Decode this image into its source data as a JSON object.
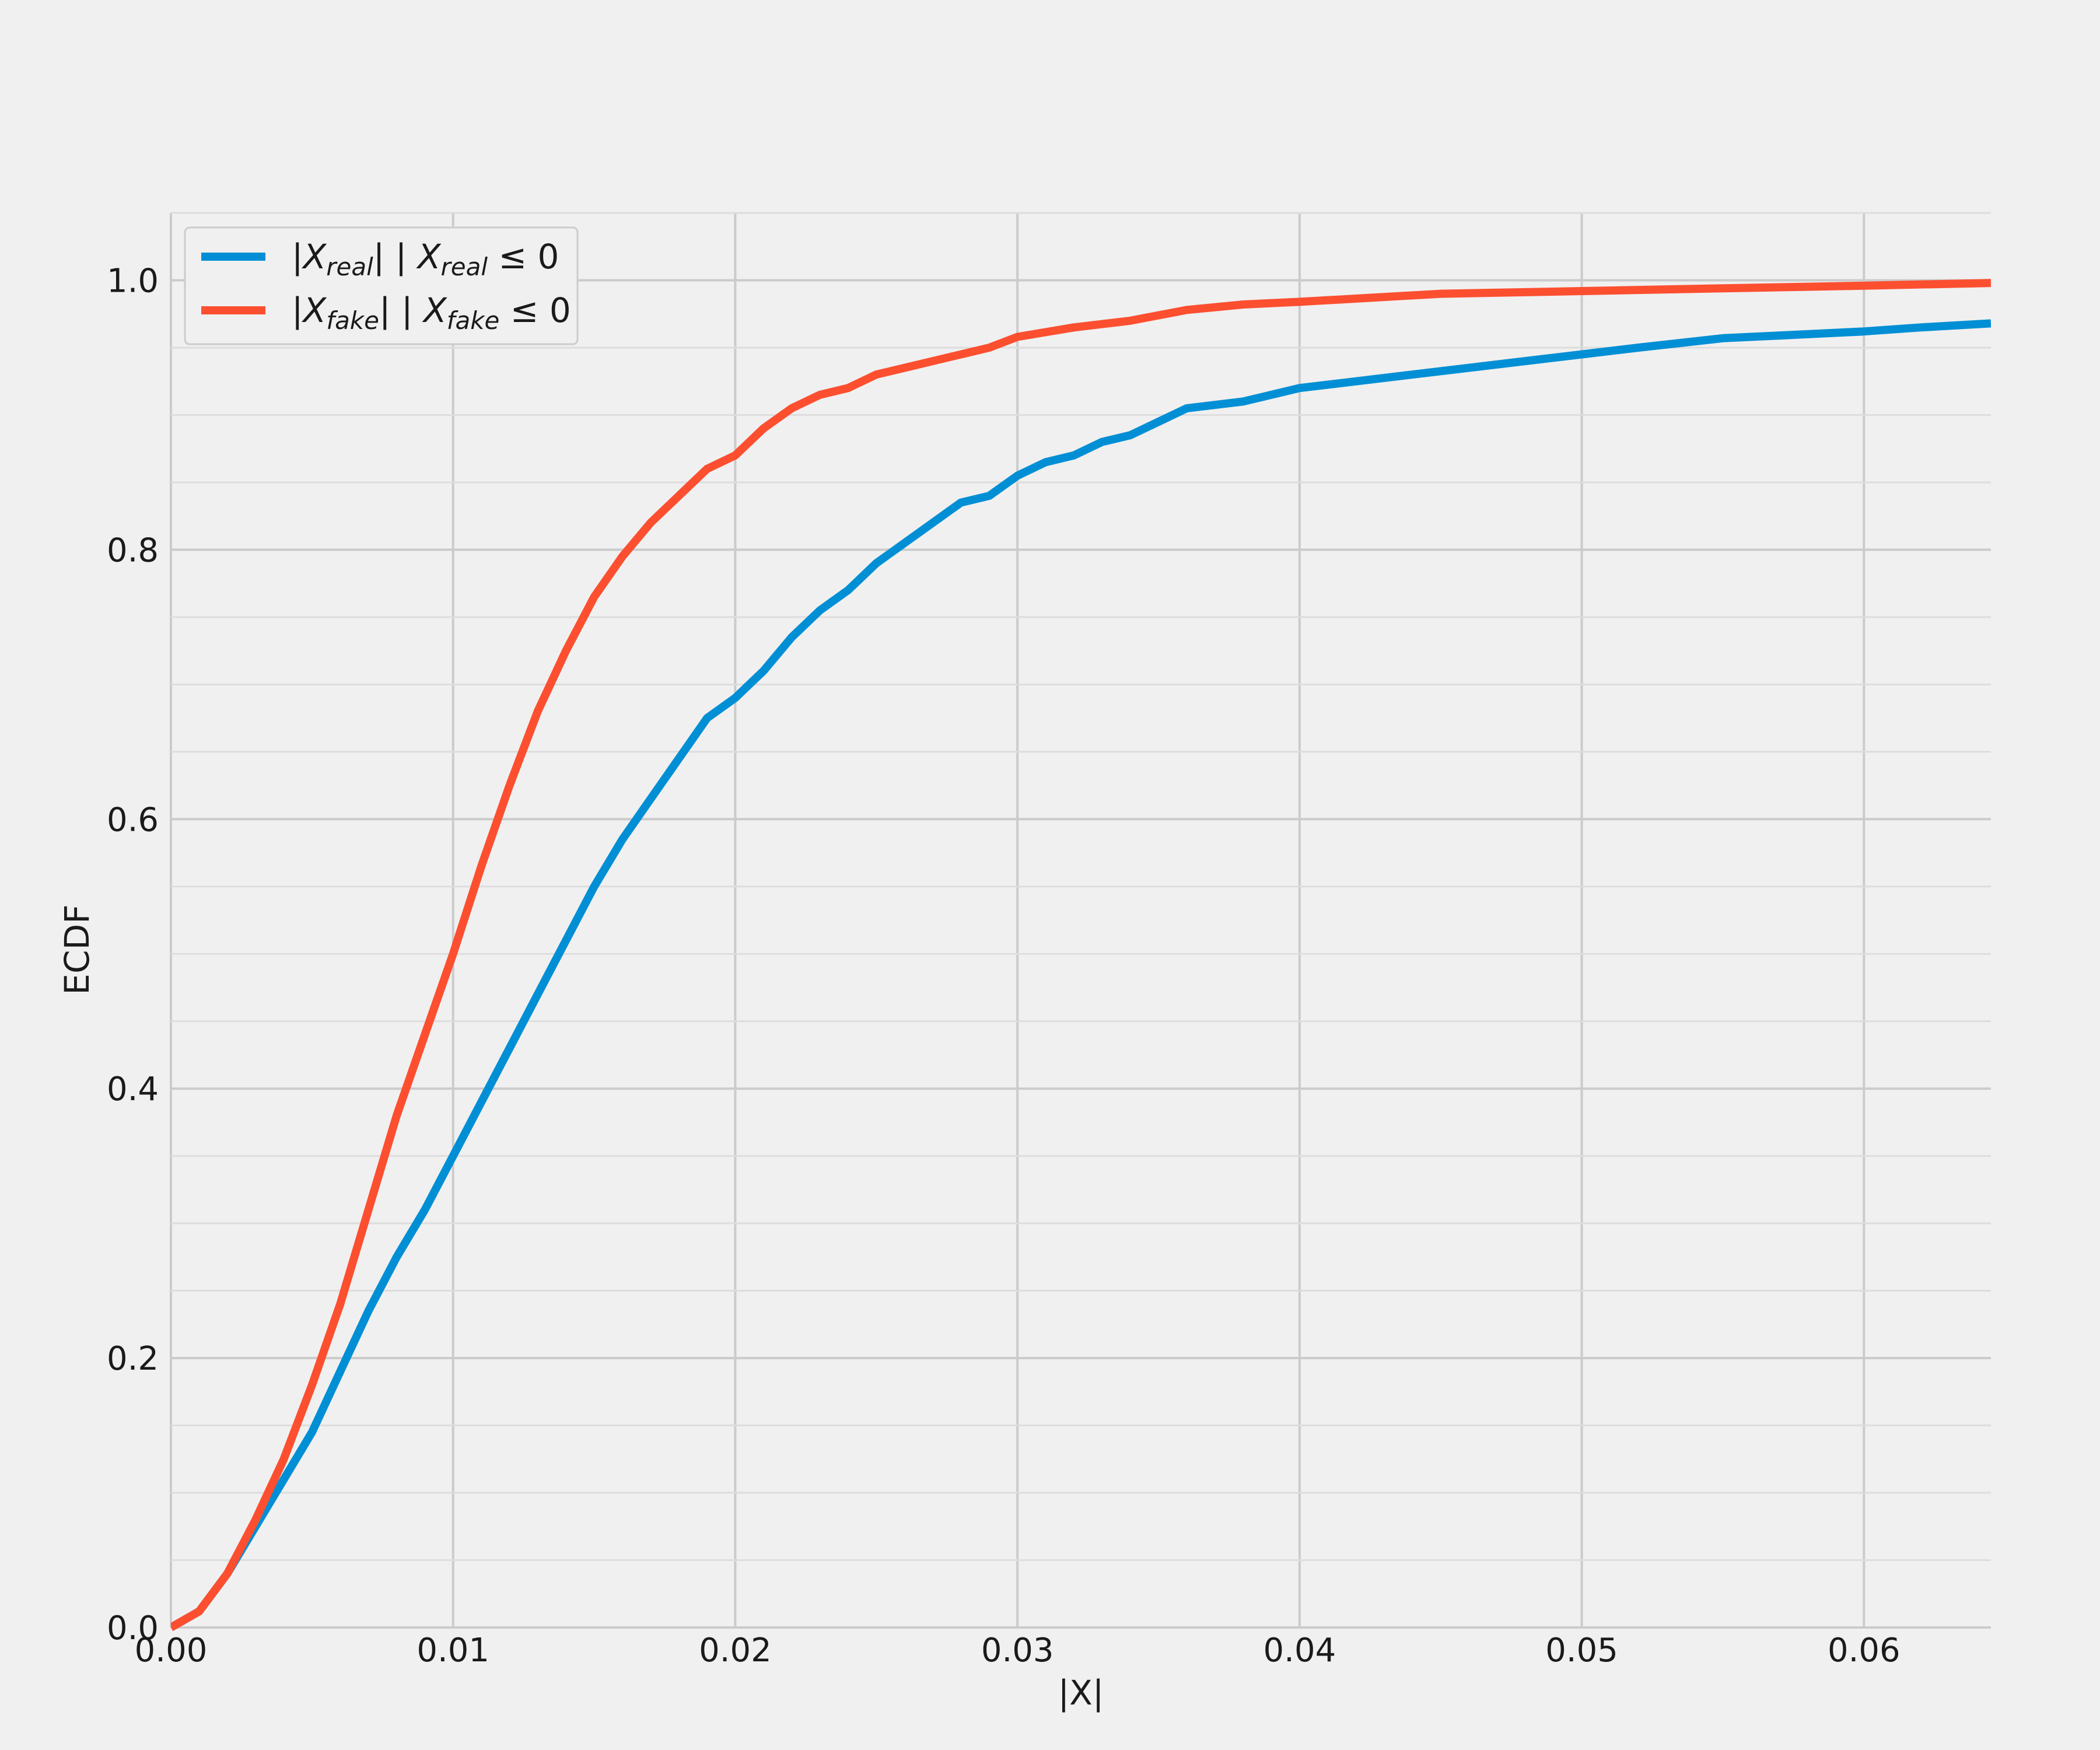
{
  "chart_data": {
    "type": "line",
    "xlabel": "|X|",
    "ylabel": "ECDF",
    "xlim": [
      0.0,
      0.0645
    ],
    "ylim": [
      0.0,
      1.05
    ],
    "grid": true,
    "legend_position": "upper-left",
    "x_ticks": [
      "0.00",
      "0.01",
      "0.02",
      "0.03",
      "0.04",
      "0.05",
      "0.06"
    ],
    "y_ticks": [
      "0.0",
      "0.2",
      "0.4",
      "0.6",
      "0.8",
      "1.0"
    ],
    "series": [
      {
        "name": "|X_real| | X_real ≤ 0",
        "legend": {
          "pre": "|",
          "var": "X",
          "sub": "real",
          "mid": "| | ",
          "var2": "X",
          "sub2": "real",
          "post": " ≤ 0"
        },
        "color": "#008fd5",
        "x": [
          0,
          0.001,
          0.002,
          0.003,
          0.004,
          0.005,
          0.006,
          0.007,
          0.008,
          0.009,
          0.01,
          0.011,
          0.012,
          0.013,
          0.014,
          0.015,
          0.016,
          0.017,
          0.018,
          0.019,
          0.02,
          0.021,
          0.022,
          0.023,
          0.024,
          0.025,
          0.026,
          0.027,
          0.028,
          0.029,
          0.03,
          0.031,
          0.032,
          0.033,
          0.034,
          0.035,
          0.036,
          0.038,
          0.04,
          0.042,
          0.044,
          0.046,
          0.048,
          0.05,
          0.052,
          0.055,
          0.058,
          0.06,
          0.062,
          0.0645
        ],
        "y": [
          0,
          0.012,
          0.04,
          0.075,
          0.11,
          0.145,
          0.19,
          0.235,
          0.275,
          0.31,
          0.35,
          0.39,
          0.43,
          0.47,
          0.51,
          0.55,
          0.585,
          0.615,
          0.645,
          0.675,
          0.69,
          0.71,
          0.735,
          0.755,
          0.77,
          0.79,
          0.805,
          0.82,
          0.835,
          0.84,
          0.855,
          0.865,
          0.87,
          0.88,
          0.885,
          0.895,
          0.905,
          0.91,
          0.92,
          0.925,
          0.93,
          0.935,
          0.94,
          0.945,
          0.95,
          0.957,
          0.96,
          0.962,
          0.965,
          0.968
        ]
      },
      {
        "name": "|X_fake| | X_fake ≤ 0",
        "legend": {
          "pre": "|",
          "var": "X",
          "sub": "fake",
          "mid": "| | ",
          "var2": "X",
          "sub2": "fake",
          "post": " ≤ 0"
        },
        "color": "#fc4f30",
        "x": [
          0,
          0.001,
          0.002,
          0.003,
          0.004,
          0.005,
          0.006,
          0.007,
          0.008,
          0.009,
          0.01,
          0.011,
          0.012,
          0.013,
          0.014,
          0.015,
          0.016,
          0.017,
          0.018,
          0.019,
          0.02,
          0.021,
          0.022,
          0.023,
          0.024,
          0.025,
          0.026,
          0.027,
          0.028,
          0.029,
          0.03,
          0.032,
          0.034,
          0.036,
          0.038,
          0.04,
          0.045,
          0.05,
          0.055,
          0.06,
          0.0645
        ],
        "y": [
          0,
          0.012,
          0.04,
          0.08,
          0.125,
          0.18,
          0.24,
          0.31,
          0.38,
          0.44,
          0.5,
          0.565,
          0.625,
          0.68,
          0.725,
          0.765,
          0.795,
          0.82,
          0.84,
          0.86,
          0.87,
          0.89,
          0.905,
          0.915,
          0.92,
          0.93,
          0.935,
          0.94,
          0.945,
          0.95,
          0.958,
          0.965,
          0.97,
          0.978,
          0.982,
          0.984,
          0.99,
          0.992,
          0.994,
          0.996,
          0.998
        ]
      }
    ]
  }
}
